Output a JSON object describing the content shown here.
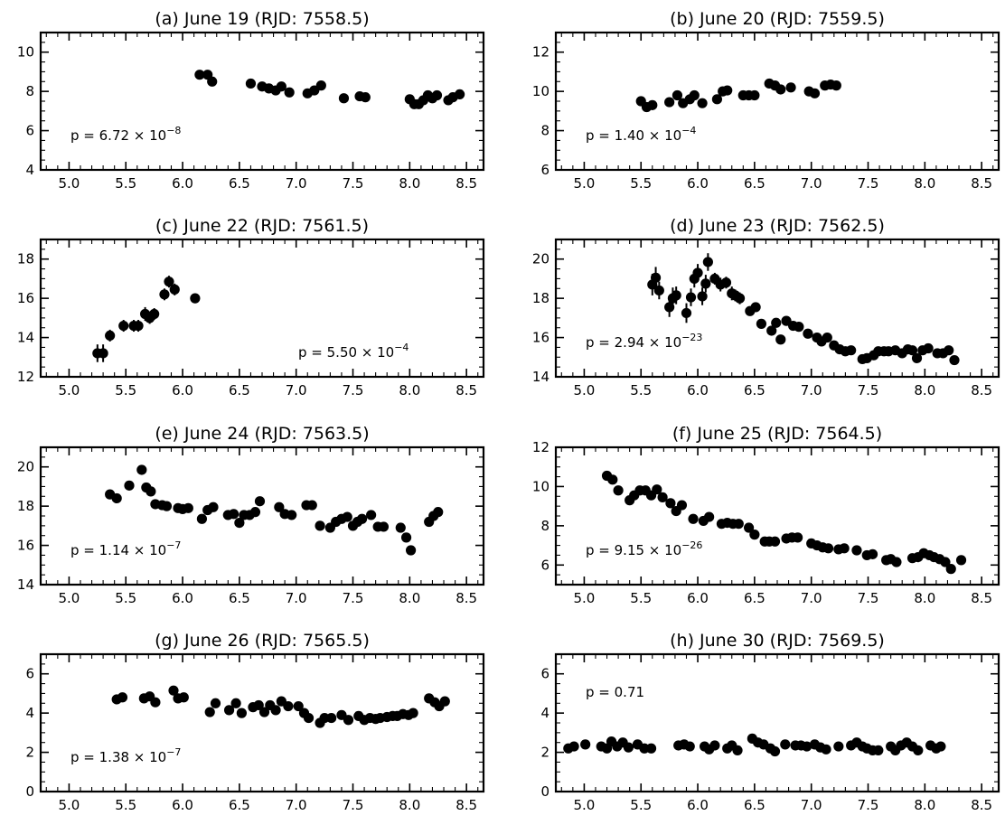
{
  "chart_data": [
    {
      "type": "scatter",
      "title": "(a) June 19 (RJD: 7558.5)",
      "xlim": [
        4.75,
        8.65
      ],
      "ylim": [
        4,
        11
      ],
      "xticks": [
        "5.0",
        "5.5",
        "6.0",
        "6.5",
        "7.0",
        "7.5",
        "8.0",
        "8.5"
      ],
      "yticks": [
        "4",
        "6",
        "8",
        "10"
      ],
      "annotation": {
        "prefix": "p = 6.72 × 10",
        "exp": "−8",
        "pos": "bottom-left"
      },
      "x": [
        6.15,
        6.22,
        6.26,
        6.6,
        6.7,
        6.76,
        6.82,
        6.87,
        6.94,
        7.1,
        7.16,
        7.22,
        7.42,
        7.56,
        7.61,
        8.0,
        8.04,
        8.08,
        8.12,
        8.16,
        8.2,
        8.24,
        8.34,
        8.38,
        8.44
      ],
      "y": [
        8.85,
        8.85,
        8.5,
        8.4,
        8.25,
        8.15,
        8.05,
        8.25,
        7.95,
        7.9,
        8.05,
        8.3,
        7.65,
        7.75,
        7.7,
        7.6,
        7.35,
        7.35,
        7.55,
        7.8,
        7.65,
        7.8,
        7.55,
        7.7,
        7.85
      ],
      "yerr": []
    },
    {
      "type": "scatter",
      "title": "(b) June 20 (RJD: 7559.5)",
      "xlim": [
        4.75,
        8.65
      ],
      "ylim": [
        6,
        13
      ],
      "xticks": [
        "5.0",
        "5.5",
        "6.0",
        "6.5",
        "7.0",
        "7.5",
        "8.0",
        "8.5"
      ],
      "yticks": [
        "6",
        "8",
        "10",
        "12"
      ],
      "annotation": {
        "prefix": "p = 1.40 × 10",
        "exp": "−4",
        "pos": "bottom-left"
      },
      "x": [
        5.5,
        5.55,
        5.6,
        5.75,
        5.82,
        5.87,
        5.93,
        5.97,
        6.04,
        6.17,
        6.22,
        6.26,
        6.4,
        6.45,
        6.5,
        6.63,
        6.68,
        6.73,
        6.82,
        6.98,
        7.03,
        7.12,
        7.17,
        7.22
      ],
      "y": [
        9.5,
        9.2,
        9.3,
        9.45,
        9.8,
        9.4,
        9.6,
        9.8,
        9.4,
        9.6,
        10.0,
        10.05,
        9.8,
        9.8,
        9.8,
        10.4,
        10.3,
        10.1,
        10.2,
        10.0,
        9.9,
        10.3,
        10.35,
        10.3
      ],
      "yerr": []
    },
    {
      "type": "scatter",
      "title": "(c) June 22 (RJD: 7561.5)",
      "xlim": [
        4.75,
        8.65
      ],
      "ylim": [
        12,
        19
      ],
      "xticks": [
        "5.0",
        "5.5",
        "6.0",
        "6.5",
        "7.0",
        "7.5",
        "8.0",
        "8.5"
      ],
      "yticks": [
        "12",
        "14",
        "16",
        "18"
      ],
      "annotation": {
        "prefix": "p = 5.50 × 10",
        "exp": "−4",
        "pos": "bottom-right"
      },
      "x": [
        5.25,
        5.3,
        5.36,
        5.48,
        5.57,
        5.61,
        5.67,
        5.71,
        5.75,
        5.84,
        5.88,
        5.93,
        6.11
      ],
      "y": [
        13.2,
        13.2,
        14.1,
        14.6,
        14.6,
        14.6,
        15.2,
        15.0,
        15.2,
        16.2,
        16.85,
        16.45,
        16.0
      ],
      "yerr": [
        0.45,
        0.45,
        0.3,
        0.3,
        0.3,
        0.3,
        0.35,
        0.3,
        0.3,
        0.3,
        0.3,
        0.3,
        0.25
      ]
    },
    {
      "type": "scatter",
      "title": "(d) June 23 (RJD: 7562.5)",
      "xlim": [
        4.75,
        8.65
      ],
      "ylim": [
        14,
        21
      ],
      "xticks": [
        "5.0",
        "5.5",
        "6.0",
        "6.5",
        "7.0",
        "7.5",
        "8.0",
        "8.5"
      ],
      "yticks": [
        "14",
        "16",
        "18",
        "20"
      ],
      "annotation": {
        "prefix": "p = 2.94 × 10",
        "exp": "−23",
        "pos": "bottom-left"
      },
      "x": [
        5.6,
        5.63,
        5.66,
        5.75,
        5.78,
        5.81,
        5.9,
        5.94,
        5.97,
        6.0,
        6.04,
        6.07,
        6.09,
        6.15,
        6.2,
        6.25,
        6.3,
        6.33,
        6.37,
        6.46,
        6.51,
        6.56,
        6.65,
        6.69,
        6.73,
        6.78,
        6.84,
        6.89,
        6.97,
        7.05,
        7.09,
        7.14,
        7.2,
        7.25,
        7.3,
        7.35,
        7.45,
        7.49,
        7.55,
        7.59,
        7.64,
        7.68,
        7.74,
        7.8,
        7.85,
        7.89,
        7.93,
        7.98,
        8.03,
        8.11,
        8.16,
        8.21,
        8.26
      ],
      "y": [
        18.7,
        19.05,
        18.4,
        17.55,
        18.0,
        18.15,
        17.25,
        18.05,
        19.0,
        19.3,
        18.1,
        18.75,
        19.85,
        19.0,
        18.7,
        18.8,
        18.25,
        18.15,
        18.0,
        17.35,
        17.55,
        16.7,
        16.35,
        16.75,
        15.9,
        16.85,
        16.6,
        16.55,
        16.2,
        16.0,
        15.8,
        16.0,
        15.6,
        15.4,
        15.3,
        15.35,
        14.9,
        14.95,
        15.1,
        15.3,
        15.3,
        15.3,
        15.35,
        15.2,
        15.4,
        15.35,
        14.95,
        15.35,
        15.45,
        15.2,
        15.2,
        15.35,
        14.85
      ],
      "yerr": [
        0.55,
        0.55,
        0.45,
        0.5,
        0.55,
        0.45,
        0.5,
        0.45,
        0.45,
        0.45,
        0.45,
        0.45,
        0.45,
        0.3,
        0.35,
        0.3,
        0.35,
        0.3,
        0.3,
        0,
        0,
        0,
        0,
        0,
        0,
        0,
        0,
        0,
        0,
        0,
        0,
        0,
        0,
        0,
        0,
        0,
        0,
        0,
        0,
        0,
        0,
        0,
        0,
        0,
        0,
        0,
        0,
        0,
        0,
        0,
        0,
        0,
        0
      ]
    },
    {
      "type": "scatter",
      "title": "(e) June 24 (RJD: 7563.5)",
      "xlim": [
        4.75,
        8.65
      ],
      "ylim": [
        14,
        21
      ],
      "xticks": [
        "5.0",
        "5.5",
        "6.0",
        "6.5",
        "7.0",
        "7.5",
        "8.0",
        "8.5"
      ],
      "yticks": [
        "14",
        "16",
        "18",
        "20"
      ],
      "annotation": {
        "prefix": "p = 1.14 × 10",
        "exp": "−7",
        "pos": "bottom-left"
      },
      "x": [
        5.36,
        5.42,
        5.53,
        5.64,
        5.68,
        5.72,
        5.76,
        5.82,
        5.86,
        5.96,
        6.0,
        6.05,
        6.17,
        6.22,
        6.27,
        6.4,
        6.45,
        6.5,
        6.54,
        6.59,
        6.64,
        6.68,
        6.85,
        6.9,
        6.96,
        7.09,
        7.14,
        7.21,
        7.3,
        7.35,
        7.4,
        7.45,
        7.5,
        7.54,
        7.58,
        7.66,
        7.72,
        7.77,
        7.92,
        7.97,
        8.01,
        8.17,
        8.21,
        8.25
      ],
      "y": [
        18.6,
        18.4,
        19.05,
        19.85,
        18.95,
        18.75,
        18.1,
        18.05,
        18.0,
        17.9,
        17.85,
        17.9,
        17.35,
        17.8,
        17.95,
        17.55,
        17.6,
        17.15,
        17.55,
        17.55,
        17.7,
        18.25,
        17.95,
        17.6,
        17.55,
        18.05,
        18.05,
        17.0,
        16.9,
        17.2,
        17.35,
        17.45,
        17.0,
        17.2,
        17.35,
        17.55,
        16.95,
        16.95,
        16.9,
        16.4,
        15.75,
        17.2,
        17.5,
        17.7
      ],
      "yerr": []
    },
    {
      "type": "scatter",
      "title": "(f) June 25 (RJD: 7564.5)",
      "xlim": [
        4.75,
        8.65
      ],
      "ylim": [
        5,
        12
      ],
      "xticks": [
        "5.0",
        "5.5",
        "6.0",
        "6.5",
        "7.0",
        "7.5",
        "8.0",
        "8.5"
      ],
      "yticks": [
        "6",
        "8",
        "10",
        "12"
      ],
      "annotation": {
        "prefix": "p = 9.15 × 10",
        "exp": "−26",
        "pos": "bottom-left"
      },
      "x": [
        5.2,
        5.25,
        5.3,
        5.4,
        5.44,
        5.49,
        5.54,
        5.59,
        5.64,
        5.69,
        5.76,
        5.81,
        5.86,
        5.96,
        6.05,
        6.1,
        6.21,
        6.26,
        6.31,
        6.36,
        6.45,
        6.5,
        6.59,
        6.63,
        6.68,
        6.78,
        6.83,
        6.88,
        7.0,
        7.05,
        7.1,
        7.15,
        7.24,
        7.29,
        7.4,
        7.49,
        7.54,
        7.66,
        7.7,
        7.75,
        7.89,
        7.94,
        7.99,
        8.04,
        8.08,
        8.13,
        8.18,
        8.23,
        8.32
      ],
      "y": [
        10.55,
        10.35,
        9.8,
        9.3,
        9.55,
        9.8,
        9.8,
        9.55,
        9.85,
        9.45,
        9.15,
        8.75,
        9.05,
        8.35,
        8.25,
        8.45,
        8.1,
        8.15,
        8.1,
        8.1,
        7.9,
        7.55,
        7.2,
        7.2,
        7.2,
        7.35,
        7.4,
        7.4,
        7.1,
        7.0,
        6.9,
        6.85,
        6.8,
        6.85,
        6.75,
        6.5,
        6.55,
        6.25,
        6.3,
        6.15,
        6.35,
        6.4,
        6.6,
        6.5,
        6.4,
        6.3,
        6.15,
        5.8,
        6.25
      ],
      "yerr": []
    },
    {
      "type": "scatter",
      "title": "(g) June 26 (RJD: 7565.5)",
      "xlim": [
        4.75,
        8.65
      ],
      "ylim": [
        0,
        7
      ],
      "xticks": [
        "5.0",
        "5.5",
        "6.0",
        "6.5",
        "7.0",
        "7.5",
        "8.0",
        "8.5"
      ],
      "yticks": [
        "0",
        "2",
        "4",
        "6"
      ],
      "annotation": {
        "prefix": "p = 1.38 × 10",
        "exp": "−7",
        "pos": "bottom-left"
      },
      "x": [
        5.42,
        5.47,
        5.66,
        5.71,
        5.76,
        5.92,
        5.96,
        6.01,
        6.24,
        6.29,
        6.41,
        6.47,
        6.52,
        6.62,
        6.67,
        6.72,
        6.77,
        6.82,
        6.87,
        6.93,
        7.02,
        7.07,
        7.11,
        7.21,
        7.25,
        7.31,
        7.4,
        7.46,
        7.55,
        7.6,
        7.65,
        7.7,
        7.74,
        7.8,
        7.85,
        7.89,
        7.94,
        7.99,
        8.03,
        8.17,
        8.22,
        8.26,
        8.31
      ],
      "y": [
        4.7,
        4.8,
        4.75,
        4.85,
        4.55,
        5.15,
        4.75,
        4.8,
        4.05,
        4.5,
        4.15,
        4.5,
        4.0,
        4.3,
        4.4,
        4.05,
        4.4,
        4.15,
        4.6,
        4.35,
        4.35,
        4.0,
        3.75,
        3.5,
        3.75,
        3.75,
        3.9,
        3.65,
        3.85,
        3.65,
        3.75,
        3.7,
        3.75,
        3.8,
        3.85,
        3.85,
        3.95,
        3.9,
        4.0,
        4.75,
        4.55,
        4.35,
        4.6
      ],
      "yerr": []
    },
    {
      "type": "scatter",
      "title": "(h) June 30 (RJD: 7569.5)",
      "xlim": [
        4.75,
        8.65
      ],
      "ylim": [
        0,
        7
      ],
      "xticks": [
        "5.0",
        "5.5",
        "6.0",
        "6.5",
        "7.0",
        "7.5",
        "8.0",
        "8.5"
      ],
      "yticks": [
        "0",
        "2",
        "4",
        "6"
      ],
      "annotation": {
        "prefix": "p = 0.71",
        "exp": "",
        "pos": "top-left"
      },
      "x": [
        4.86,
        4.91,
        5.01,
        5.15,
        5.2,
        5.24,
        5.29,
        5.34,
        5.39,
        5.47,
        5.53,
        5.59,
        5.83,
        5.88,
        5.93,
        6.06,
        6.1,
        6.15,
        6.26,
        6.3,
        6.35,
        6.48,
        6.53,
        6.58,
        6.64,
        6.68,
        6.77,
        6.86,
        6.91,
        6.96,
        7.03,
        7.08,
        7.13,
        7.24,
        7.35,
        7.4,
        7.45,
        7.49,
        7.54,
        7.59,
        7.7,
        7.74,
        7.79,
        7.84,
        7.89,
        7.94,
        8.05,
        8.1,
        8.14
      ],
      "y": [
        2.2,
        2.3,
        2.4,
        2.3,
        2.2,
        2.55,
        2.3,
        2.5,
        2.25,
        2.4,
        2.2,
        2.2,
        2.35,
        2.4,
        2.3,
        2.3,
        2.15,
        2.35,
        2.2,
        2.35,
        2.1,
        2.7,
        2.5,
        2.4,
        2.2,
        2.05,
        2.4,
        2.35,
        2.35,
        2.3,
        2.4,
        2.25,
        2.15,
        2.3,
        2.35,
        2.5,
        2.3,
        2.2,
        2.1,
        2.1,
        2.3,
        2.1,
        2.35,
        2.5,
        2.3,
        2.1,
        2.35,
        2.2,
        2.3
      ],
      "yerr": []
    }
  ]
}
